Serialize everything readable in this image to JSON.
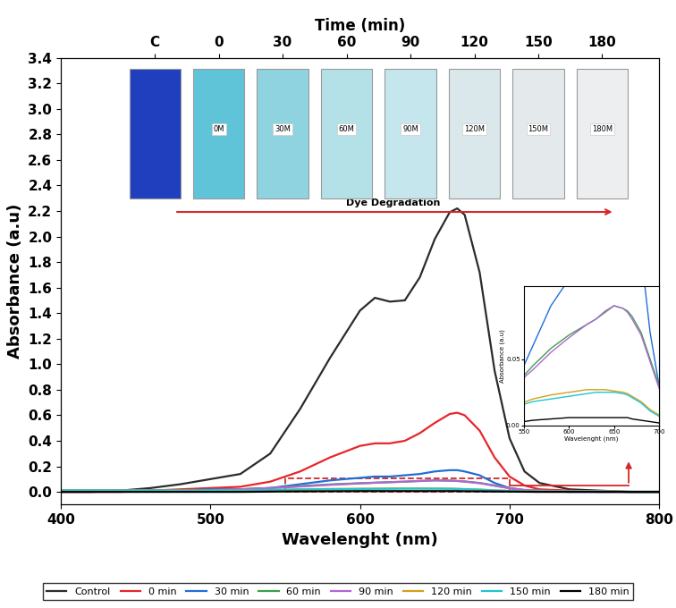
{
  "chart_data": [
    {
      "type": "line",
      "x_label": "Wavelenght (nm)",
      "y_label": "Absorbance (a.u)",
      "x2_label": "Time (min)",
      "x2_categories": [
        "C",
        "0",
        "30",
        "60",
        "90",
        "120",
        "150",
        "180"
      ],
      "vial_labels": [
        null,
        "0M",
        "30M",
        "60M",
        "90M",
        "120M",
        "150M",
        "180M"
      ],
      "annotation": "Dye Degradation",
      "legend": "lower center",
      "xlim": [
        400,
        800
      ],
      "xticks": [
        400,
        500,
        600,
        700,
        800
      ],
      "ylim": [
        -0.1,
        3.4
      ],
      "yticks": [
        {
          "value": 0.0,
          "label": "0.0"
        },
        {
          "value": 0.2,
          "label": "0.2"
        },
        {
          "value": 0.4,
          "label": "0.4"
        },
        {
          "value": 0.6,
          "label": "0.6"
        },
        {
          "value": 0.8,
          "label": "0.8"
        },
        {
          "value": 1.0,
          "label": "1.0"
        },
        {
          "value": 1.2,
          "label": "1.2"
        },
        {
          "value": 1.4,
          "label": "1.4"
        },
        {
          "value": 1.6,
          "label": "1.6"
        },
        {
          "value": 1.8,
          "label": "1.8"
        },
        {
          "value": 2.0,
          "label": "2.0"
        },
        {
          "value": 2.2,
          "label": "2.2"
        },
        {
          "value": 2.4,
          "label": "2.4"
        },
        {
          "value": 2.6,
          "label": "2.6"
        },
        {
          "value": 2.8,
          "label": "2.8"
        },
        {
          "value": 3.0,
          "label": "3.0"
        },
        {
          "value": 3.2,
          "label": "3.2"
        },
        {
          "value": 3.4,
          "label": "3.4"
        }
      ],
      "x": [
        400,
        420,
        440,
        460,
        480,
        500,
        520,
        540,
        560,
        580,
        600,
        610,
        620,
        630,
        640,
        650,
        660,
        665,
        670,
        680,
        690,
        700,
        710,
        720,
        740,
        760,
        780,
        800
      ],
      "series": [
        {
          "name": "Control",
          "color": "#2b2b2b",
          "values": [
            0.0,
            0.0,
            0.01,
            0.03,
            0.06,
            0.1,
            0.14,
            0.3,
            0.65,
            1.05,
            1.42,
            1.52,
            1.49,
            1.5,
            1.68,
            1.98,
            2.19,
            2.22,
            2.17,
            1.72,
            0.95,
            0.42,
            0.16,
            0.07,
            0.02,
            0.01,
            0.0,
            0.0
          ]
        },
        {
          "name": "0 min",
          "color": "#e8262a",
          "values": [
            0.0,
            0.0,
            0.0,
            0.01,
            0.02,
            0.03,
            0.04,
            0.08,
            0.16,
            0.27,
            0.36,
            0.38,
            0.38,
            0.4,
            0.46,
            0.54,
            0.61,
            0.62,
            0.6,
            0.48,
            0.27,
            0.12,
            0.05,
            0.02,
            0.01,
            0.0,
            0.0,
            0.0
          ]
        },
        {
          "name": "30 min",
          "color": "#1f6fd6",
          "values": [
            0.01,
            0.01,
            0.01,
            0.01,
            0.01,
            0.02,
            0.02,
            0.03,
            0.06,
            0.09,
            0.11,
            0.12,
            0.12,
            0.13,
            0.14,
            0.16,
            0.17,
            0.17,
            0.16,
            0.13,
            0.07,
            0.03,
            0.01,
            0.01,
            0.0,
            0.0,
            0.0,
            0.0
          ]
        },
        {
          "name": "60 min",
          "color": "#3aa04a",
          "values": [
            0.01,
            0.01,
            0.01,
            0.01,
            0.01,
            0.01,
            0.02,
            0.03,
            0.045,
            0.058,
            0.068,
            0.072,
            0.076,
            0.08,
            0.085,
            0.09,
            0.088,
            0.086,
            0.082,
            0.07,
            0.05,
            0.03,
            0.015,
            0.01,
            0.005,
            0.005,
            0.0,
            0.0
          ]
        },
        {
          "name": "90 min",
          "color": "#b266d6",
          "values": [
            0.01,
            0.01,
            0.01,
            0.01,
            0.01,
            0.01,
            0.02,
            0.03,
            0.042,
            0.055,
            0.066,
            0.071,
            0.076,
            0.08,
            0.086,
            0.09,
            0.088,
            0.085,
            0.08,
            0.068,
            0.048,
            0.028,
            0.014,
            0.01,
            0.005,
            0.005,
            0.0,
            0.0
          ]
        },
        {
          "name": "120 min",
          "color": "#d4a017",
          "values": [
            0.01,
            0.01,
            0.01,
            0.01,
            0.01,
            0.01,
            0.01,
            0.015,
            0.02,
            0.023,
            0.025,
            0.026,
            0.027,
            0.027,
            0.027,
            0.026,
            0.025,
            0.024,
            0.022,
            0.018,
            0.012,
            0.008,
            0.005,
            0.004,
            0.003,
            0.002,
            0.002,
            0.002
          ]
        },
        {
          "name": "150 min",
          "color": "#20c5d0",
          "values": [
            0.01,
            0.01,
            0.01,
            0.01,
            0.01,
            0.01,
            0.01,
            0.014,
            0.018,
            0.02,
            0.022,
            0.023,
            0.024,
            0.025,
            0.025,
            0.025,
            0.024,
            0.023,
            0.021,
            0.017,
            0.011,
            0.007,
            0.004,
            0.003,
            0.002,
            0.002,
            0.002,
            0.002
          ]
        },
        {
          "name": "180 min",
          "color": "#000000",
          "values": [
            0.0,
            0.0,
            0.0,
            0.0,
            0.0,
            0.0,
            0.0,
            0.002,
            0.004,
            0.005,
            0.006,
            0.006,
            0.006,
            0.006,
            0.006,
            0.006,
            0.006,
            0.006,
            0.005,
            0.004,
            0.003,
            0.002,
            0.001,
            0.0,
            0.0,
            0.0,
            0.0,
            0.0
          ]
        }
      ]
    },
    {
      "type": "line",
      "x_label": "Wavelenght (nm)",
      "y_label": "Absorbance (a.u)",
      "xlim": [
        550,
        700
      ],
      "xticks": [
        550,
        600,
        650,
        700
      ],
      "ylim": [
        0,
        0.105
      ],
      "yticks": [
        {
          "value": 0,
          "label": "0.00"
        },
        {
          "value": 0.05,
          "label": "0.05"
        }
      ]
    }
  ]
}
